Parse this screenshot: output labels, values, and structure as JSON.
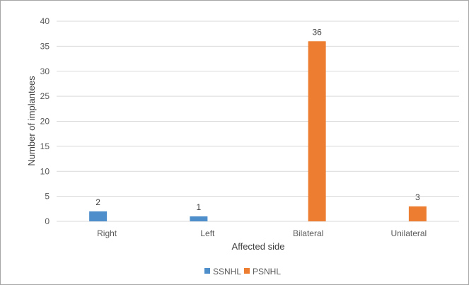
{
  "chart_data": {
    "type": "bar",
    "title": "",
    "xlabel": "Affected side",
    "ylabel": "Number of implantees",
    "categories": [
      "Right",
      "Left",
      "Bilateral",
      "Unilateral"
    ],
    "series": [
      {
        "name": "SSNHL",
        "values": [
          2,
          1,
          null,
          null
        ],
        "color": "#4e8fcb"
      },
      {
        "name": "PSNHL",
        "values": [
          null,
          null,
          36,
          3
        ],
        "color": "#ed7d31"
      }
    ],
    "ylim": [
      0,
      40
    ],
    "yticks": [
      0,
      5,
      10,
      15,
      20,
      25,
      30,
      35,
      40
    ],
    "grid": true,
    "legend_position": "bottom",
    "gridline_color": "#d9d9d9"
  }
}
